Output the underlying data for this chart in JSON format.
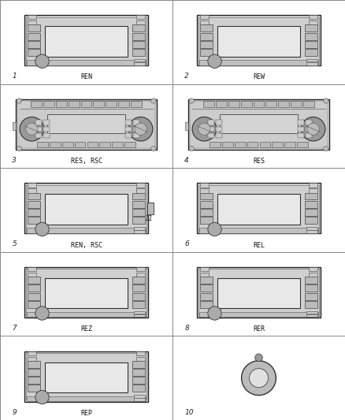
{
  "bg_color": "#f0f0f0",
  "cell_bg": "#ffffff",
  "grid_color": "#888888",
  "cells": [
    {
      "row": 0,
      "col": 0,
      "num": "1",
      "label": "REN",
      "type": "nav_radio"
    },
    {
      "row": 0,
      "col": 1,
      "num": "2",
      "label": "REW",
      "type": "nav_radio"
    },
    {
      "row": 1,
      "col": 0,
      "num": "3",
      "label": "RES, RSC",
      "type": "cd_radio"
    },
    {
      "row": 1,
      "col": 1,
      "num": "4",
      "label": "RES",
      "type": "cd_radio"
    },
    {
      "row": 2,
      "col": 0,
      "num": "5",
      "label": "REN, RSC",
      "type": "nav_radio",
      "extra_num": "11"
    },
    {
      "row": 2,
      "col": 1,
      "num": "6",
      "label": "REL",
      "type": "nav_radio"
    },
    {
      "row": 3,
      "col": 0,
      "num": "7",
      "label": "REZ",
      "type": "nav_radio"
    },
    {
      "row": 3,
      "col": 1,
      "num": "8",
      "label": "RER",
      "type": "nav_radio"
    },
    {
      "row": 4,
      "col": 0,
      "num": "9",
      "label": "REP",
      "type": "nav_radio"
    },
    {
      "row": 4,
      "col": 1,
      "num": "10",
      "label": "",
      "type": "knob"
    }
  ],
  "n_rows": 5,
  "n_cols": 2
}
